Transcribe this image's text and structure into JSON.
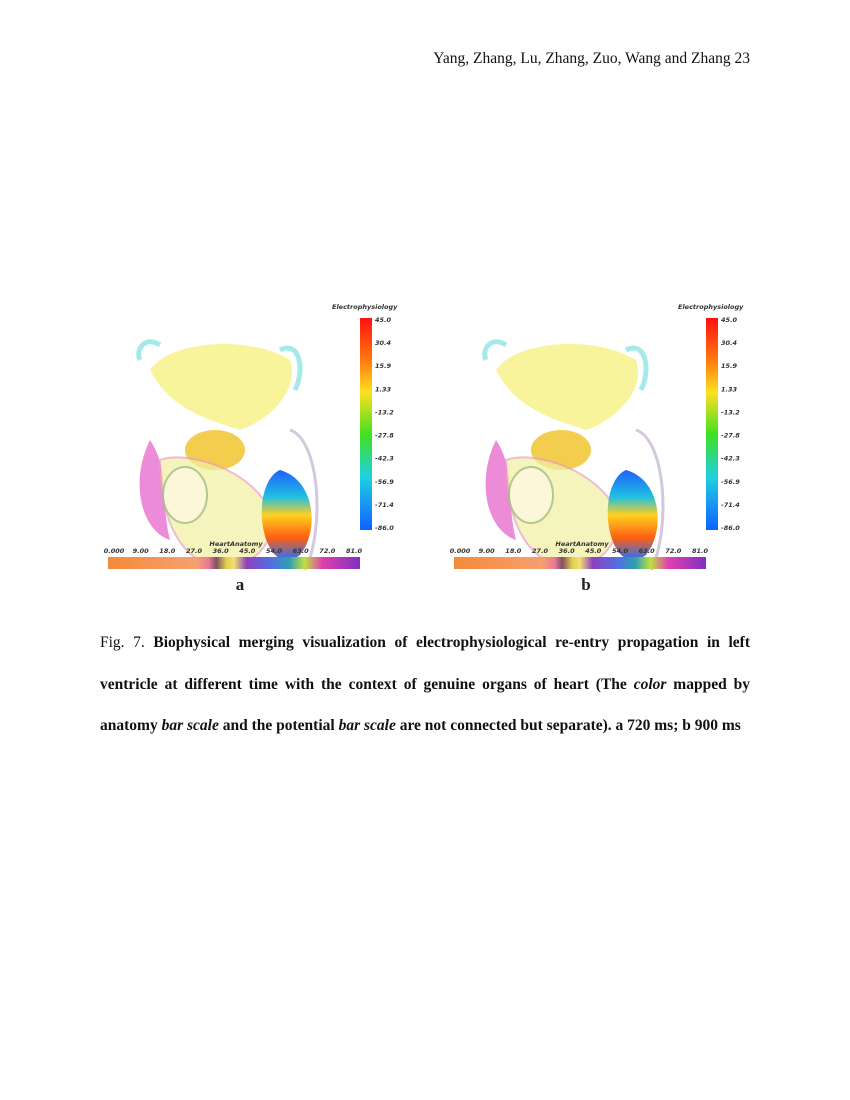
{
  "header": {
    "running_head": "Yang, Zhang, Lu, Zhang, Zuo, Wang and Zhang 23"
  },
  "figure": {
    "panels": [
      {
        "label": "a",
        "potential_scale": {
          "title": "Electrophysiology",
          "ticks": [
            "45.0",
            "30.4",
            "15.9",
            "1.33",
            "-13.2",
            "-27.8",
            "-42.3",
            "-56.9",
            "-71.4",
            "-86.0"
          ]
        },
        "anatomy_scale": {
          "title": "HeartAnatomy",
          "ticks": [
            "0.000",
            "9.00",
            "18.0",
            "27.0",
            "36.0",
            "45.0",
            "54.0",
            "63.0",
            "72.0",
            "81.0"
          ]
        }
      },
      {
        "label": "b",
        "potential_scale": {
          "title": "Electrophysiology",
          "ticks": [
            "45.0",
            "30.4",
            "15.9",
            "1.33",
            "-13.2",
            "-27.8",
            "-42.3",
            "-56.9",
            "-71.4",
            "-86.0"
          ]
        },
        "anatomy_scale": {
          "title": "HeartAnatomy",
          "ticks": [
            "0.000",
            "9.00",
            "18.0",
            "27.0",
            "36.0",
            "45.0",
            "54.0",
            "63.0",
            "72.0",
            "81.0"
          ]
        }
      }
    ],
    "caption": {
      "number": "Fig. 7.",
      "segments": [
        {
          "text": "Biophysical merging visualization of electrophysiological re-entry propagation in left ventricle at different time with the context of genuine organs of heart (The ",
          "style": "bold"
        },
        {
          "text": "color",
          "style": "bold-italic"
        },
        {
          "text": " mapped by anatomy ",
          "style": "bold"
        },
        {
          "text": "bar scale",
          "style": "bold-italic"
        },
        {
          "text": " and the potential ",
          "style": "bold"
        },
        {
          "text": "bar scale",
          "style": "bold-italic"
        },
        {
          "text": " are not connected but separate). a 720 ms; b 900 ms",
          "style": "bold"
        }
      ]
    }
  }
}
